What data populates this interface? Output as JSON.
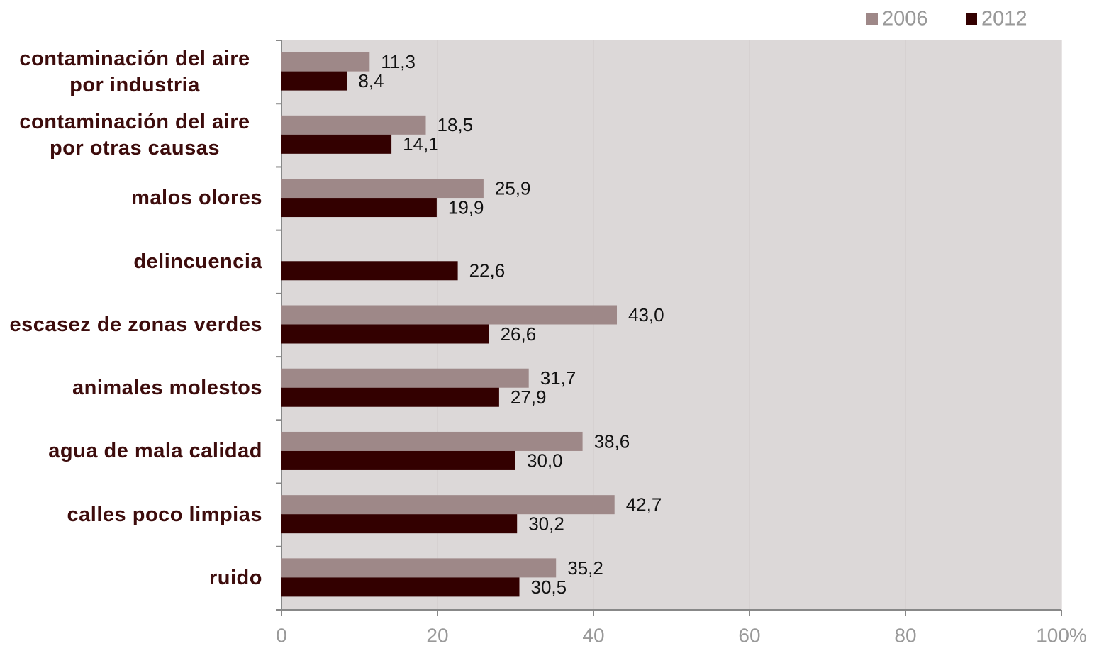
{
  "chart_data": {
    "type": "bar",
    "orientation": "horizontal",
    "categories": [
      "contaminación del aire por industria",
      "contaminación del aire por otras causas",
      "malos olores",
      "delincuencia",
      "escasez de zonas verdes",
      "animales molestos",
      "agua de mala calidad",
      "calles poco limpias",
      "ruido"
    ],
    "series": [
      {
        "name": "2006",
        "color": "#9e8888",
        "values": [
          11.3,
          18.5,
          25.9,
          null,
          43.0,
          31.7,
          38.6,
          42.7,
          35.2
        ],
        "value_labels": [
          "11,3",
          "18,5",
          "25,9",
          null,
          "43,0",
          "31,7",
          "38,6",
          "42,7",
          "35,2"
        ]
      },
      {
        "name": "2012",
        "color": "#330000",
        "values": [
          8.4,
          14.1,
          19.9,
          22.6,
          26.6,
          27.9,
          30.0,
          30.2,
          30.5
        ],
        "value_labels": [
          "8,4",
          "14,1",
          "19,9",
          "22,6",
          "26,6",
          "27,9",
          "30,0",
          "30,2",
          "30,5"
        ]
      }
    ],
    "xlim": [
      0,
      100
    ],
    "xticks": [
      0,
      20,
      40,
      60,
      80,
      {
        "value": 100,
        "label": "100%"
      }
    ],
    "grid": true,
    "legend": "top-right"
  }
}
